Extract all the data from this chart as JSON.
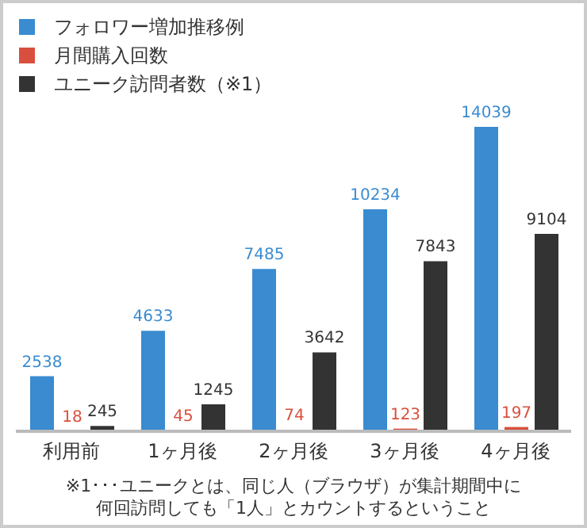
{
  "chart_data": {
    "type": "bar",
    "categories": [
      "利用前",
      "1ヶ月後",
      "2ヶ月後",
      "3ヶ月後",
      "4ヶ月後"
    ],
    "series": [
      {
        "name": "フォロワー増加推移例",
        "color": "#3a8bd0",
        "values": [
          2538,
          4633,
          7485,
          10234,
          14039
        ]
      },
      {
        "name": "月間購入回数",
        "color": "#d94f3d",
        "values": [
          18,
          45,
          74,
          123,
          197
        ]
      },
      {
        "name": "ユニーク訪問者数（※1）",
        "color": "#333333",
        "values": [
          245,
          1245,
          3642,
          7843,
          9104
        ]
      }
    ],
    "data_labels": true,
    "legend": "top left",
    "relative": false,
    "annotations": [
      "※1･･･ユニークとは、同じ人（ブラウザ）が集計期間中に",
      "何回訪問しても「1人」とカウントするということ"
    ]
  }
}
